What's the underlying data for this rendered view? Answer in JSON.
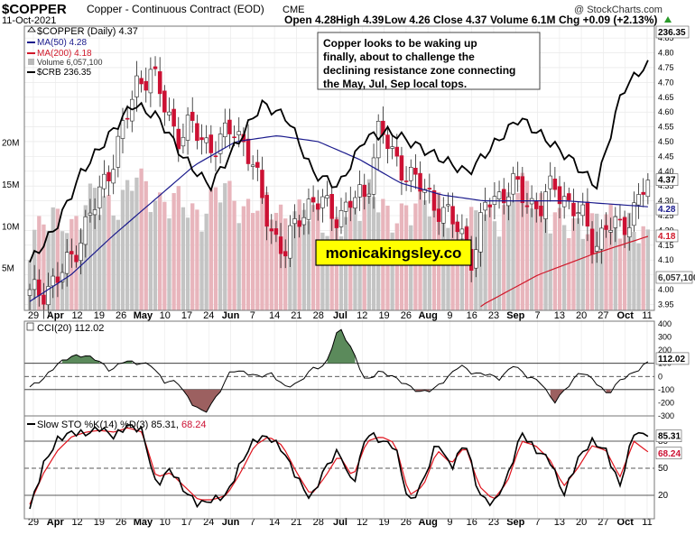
{
  "header": {
    "symbol": "$COPPER",
    "name": "Copper - Continuous Contract (EOD)",
    "exchange": "CME",
    "date": "11-Oct-2021",
    "watermark": "@ StockCharts.com",
    "quote": {
      "open": "Open 4.28",
      "high": "High 4.39",
      "low": "Low 4.26",
      "close": "Close 4.37",
      "volume": "Volume 6.1M",
      "chg": "Chg +0.09 (+2.13%)"
    },
    "chg_icon": "up-triangle-icon"
  },
  "legend": {
    "main": "$COPPER (Daily) 4.37",
    "ma50": "MA(50) 4.28",
    "ma200": "MA(200) 4.18",
    "volume": "Volume 6,057,100",
    "crb": "$CRB 236.35"
  },
  "annotation": "Copper looks to be waking up finally, about to challenge the declining resistance zone connecting the May, Jul, Sep local tops.",
  "brand": "monicakingsley.co",
  "colors": {
    "ma50": "#1a1a8c",
    "ma200": "#d0182a",
    "up": "#ffffff",
    "down": "#cc1133",
    "brand_bg": "#ffff00",
    "cci_fill_pos": "#5b8a5b",
    "cci_fill_neg": "#9c6060"
  },
  "chart_data": [
    {
      "type": "candlestick",
      "title": "$COPPER (Daily)",
      "x_tick_labels": [
        "29",
        "Apr",
        "12",
        "19",
        "26",
        "May",
        "10",
        "17",
        "24",
        "Jun",
        "7",
        "14",
        "21",
        "28",
        "Jul",
        "12",
        "19",
        "26",
        "Aug",
        "9",
        "16",
        "23",
        "Sep",
        "7",
        "13",
        "20",
        "27",
        "Oct",
        "11"
      ],
      "y_tick_labels": [
        "3.95",
        "4.00",
        "4.05",
        "4.10",
        "4.15",
        "4.20",
        "4.25",
        "4.30",
        "4.35",
        "4.40",
        "4.45",
        "4.50",
        "4.55",
        "4.60",
        "4.65",
        "4.70",
        "4.75",
        "4.80",
        "4.85"
      ],
      "ylim": [
        3.93,
        4.89
      ],
      "price_anchors": [
        3.98,
        4.0,
        4.03,
        4.1,
        4.2,
        4.3,
        4.42,
        4.55,
        4.7,
        4.74,
        4.62,
        4.52,
        4.55,
        4.5,
        4.48,
        4.55,
        4.5,
        4.35,
        4.2,
        4.12,
        4.25,
        4.3,
        4.28,
        4.25,
        4.3,
        4.32,
        4.55,
        4.45,
        4.4,
        4.35,
        4.3,
        4.25,
        4.2,
        4.1,
        4.3,
        4.32,
        4.35,
        4.3,
        4.28,
        4.35,
        4.3,
        4.25,
        4.15,
        4.22,
        4.2,
        4.28,
        4.37
      ],
      "last_close": "4.37",
      "last_close_value": 4.37,
      "ma50_anchors": [
        3.96,
        4.05,
        4.18,
        4.3,
        4.42,
        4.5,
        4.52,
        4.5,
        4.44,
        4.36,
        4.32,
        4.3,
        4.3,
        4.3,
        4.29,
        4.28
      ],
      "ma50_label": "4.28",
      "ma50_value": 4.28,
      "ma200_anchors": [
        3.6,
        3.8,
        3.95,
        4.05,
        4.12,
        4.18
      ],
      "ma200_label": "4.18",
      "ma200_value": 4.18,
      "crb_anchors": [
        207,
        212,
        220,
        225,
        230,
        228,
        222,
        218,
        224,
        230,
        228,
        220,
        218,
        225,
        226,
        224,
        222,
        220,
        224,
        228,
        225,
        222,
        218,
        232,
        236
      ],
      "crb_label": "236.35",
      "crb_value": 236.35,
      "volume_tick_labels": [
        "5M",
        "10M",
        "15M",
        "20M"
      ],
      "volume_label": "6,057,100",
      "volume_value": 6057100,
      "volume_anchors": [
        6,
        9,
        7,
        12,
        9,
        14,
        10,
        11,
        8,
        13,
        9,
        11,
        8,
        10,
        7,
        9,
        12,
        8,
        10,
        11,
        7,
        9,
        8,
        13,
        10,
        8,
        7,
        9,
        8,
        6
      ]
    },
    {
      "type": "line",
      "title": "CCI(20)",
      "last_value": "112.02",
      "last_value_num": 112.02,
      "y_tick_labels": [
        "-300",
        "-200",
        "-100",
        "0",
        "100",
        "200",
        "300",
        "400"
      ],
      "ylim": [
        -300,
        420
      ],
      "reference_lines": [
        100,
        0,
        -100
      ],
      "anchors": [
        -80,
        -20,
        90,
        150,
        160,
        130,
        40,
        120,
        100,
        90,
        -40,
        -40,
        -200,
        -280,
        -140,
        50,
        30,
        0,
        20,
        -80,
        -50,
        60,
        80,
        380,
        200,
        -40,
        40,
        0,
        -60,
        -120,
        -100,
        -20,
        90,
        20,
        20,
        -20,
        90,
        0,
        -40,
        -200,
        -80,
        40,
        -30,
        -140,
        -20,
        30,
        110
      ],
      "last_label": "112.02"
    },
    {
      "type": "line",
      "title": "Slow STO %K(14) %D(3)",
      "k_label": "85.31",
      "d_label": "68.24",
      "k_value": 85.31,
      "d_value": 68.24,
      "y_tick_labels": [
        "20",
        "50",
        "80"
      ],
      "ylim": [
        0,
        100
      ],
      "reference_lines": [
        80,
        50,
        20
      ],
      "k_anchors": [
        5,
        55,
        82,
        90,
        88,
        95,
        85,
        98,
        92,
        30,
        50,
        25,
        10,
        15,
        20,
        55,
        82,
        85,
        70,
        40,
        15,
        50,
        70,
        30,
        90,
        80,
        75,
        10,
        35,
        80,
        50,
        80,
        20,
        10,
        40,
        90,
        70,
        60,
        20,
        60,
        80,
        70,
        30,
        90,
        85
      ],
      "d_anchors": [
        10,
        45,
        70,
        85,
        90,
        92,
        90,
        95,
        90,
        40,
        45,
        30,
        15,
        15,
        20,
        45,
        75,
        85,
        75,
        45,
        20,
        40,
        65,
        40,
        80,
        85,
        78,
        20,
        30,
        70,
        55,
        75,
        30,
        15,
        35,
        80,
        75,
        60,
        30,
        50,
        75,
        70,
        40,
        80,
        68
      ]
    }
  ]
}
